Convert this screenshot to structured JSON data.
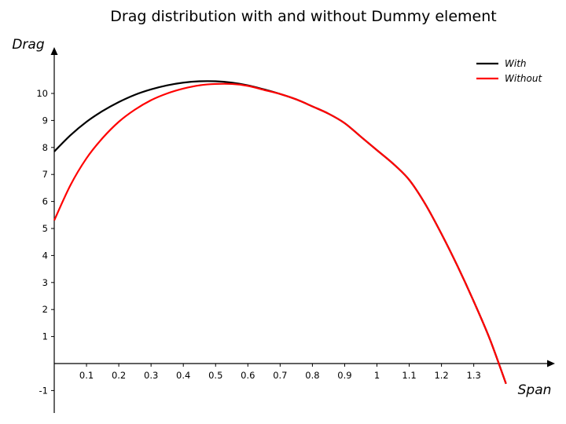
{
  "chart_data": {
    "type": "line",
    "title": "Drag distribution with and without Dummy element",
    "xlabel": "Span",
    "ylabel": "Drag",
    "xlim": [
      0,
      1.5
    ],
    "ylim": [
      -1.8,
      11.5
    ],
    "x_ticks": [
      "0.1",
      "0.2",
      "0.3",
      "0.4",
      "0.5",
      "0.6",
      "0.7",
      "0.8",
      "0.9",
      "1",
      "1.1",
      "1.2",
      "1.3"
    ],
    "y_ticks": [
      "-1",
      "1",
      "2",
      "3",
      "4",
      "5",
      "6",
      "7",
      "8",
      "9",
      "10"
    ],
    "grid": false,
    "legend": "top-right",
    "series": [
      {
        "name": "With",
        "color": "#000000",
        "x": [
          0,
          0.05,
          0.1,
          0.15,
          0.2,
          0.25,
          0.3,
          0.35,
          0.4,
          0.45,
          0.5,
          0.55,
          0.6,
          0.65,
          0.7,
          0.75,
          0.8,
          0.85,
          0.9,
          0.95,
          1.0,
          1.05,
          1.1,
          1.15,
          1.2,
          1.25,
          1.3,
          1.35,
          1.4
        ],
        "y": [
          7.85,
          8.45,
          8.95,
          9.35,
          9.68,
          9.95,
          10.15,
          10.3,
          10.4,
          10.45,
          10.45,
          10.4,
          10.3,
          10.15,
          9.98,
          9.78,
          9.52,
          9.25,
          8.9,
          8.4,
          7.9,
          7.4,
          6.8,
          5.9,
          4.8,
          3.6,
          2.3,
          0.9,
          -0.75
        ]
      },
      {
        "name": "Without",
        "color": "#ff0000",
        "x": [
          0,
          0.05,
          0.1,
          0.15,
          0.2,
          0.25,
          0.3,
          0.35,
          0.4,
          0.45,
          0.5,
          0.55,
          0.6,
          0.65,
          0.7,
          0.75,
          0.8,
          0.85,
          0.9,
          0.95,
          1.0,
          1.05,
          1.1,
          1.15,
          1.2,
          1.25,
          1.3,
          1.35,
          1.4
        ],
        "y": [
          5.3,
          6.6,
          7.6,
          8.35,
          8.95,
          9.4,
          9.75,
          10.0,
          10.18,
          10.3,
          10.35,
          10.35,
          10.28,
          10.13,
          9.98,
          9.78,
          9.52,
          9.25,
          8.9,
          8.4,
          7.9,
          7.4,
          6.8,
          5.9,
          4.8,
          3.6,
          2.3,
          0.9,
          -0.75
        ]
      }
    ]
  }
}
